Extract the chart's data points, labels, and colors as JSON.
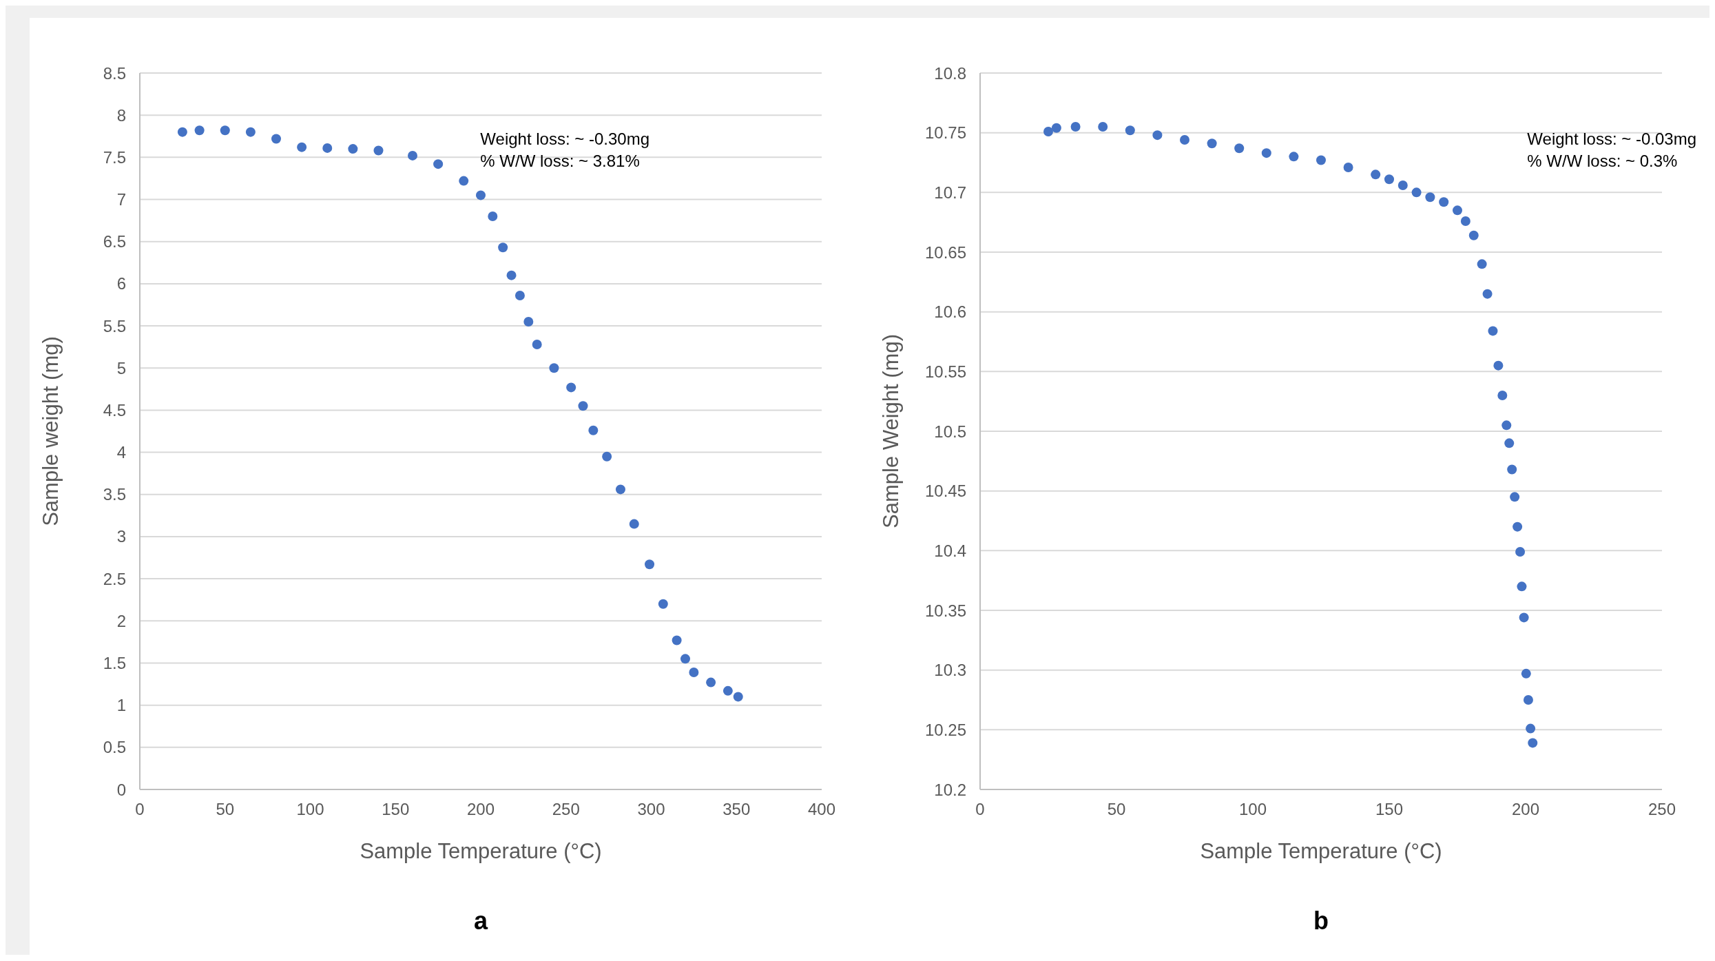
{
  "chart_data": [
    {
      "type": "scatter",
      "xlabel": "Sample Temperature  (°C)",
      "ylabel": "Sample weight (mg)",
      "annotations": [
        "Weight loss: ~ -0.30mg",
        "% W/W loss: ~ 3.81%",
        "a"
      ],
      "x": [
        25,
        35,
        50,
        65,
        80,
        95,
        110,
        125,
        140,
        160,
        175,
        190,
        200,
        207,
        213,
        218,
        223,
        228,
        233,
        243,
        253,
        260,
        266,
        274,
        282,
        290,
        299,
        307,
        315,
        320,
        325,
        335,
        345,
        351
      ],
      "series": [
        {
          "color": "#4472c4",
          "values": [
            7.8,
            7.82,
            7.82,
            7.8,
            7.72,
            7.62,
            7.61,
            7.6,
            7.58,
            7.52,
            7.42,
            7.22,
            7.05,
            6.8,
            6.43,
            6.1,
            5.86,
            5.55,
            5.28,
            5.0,
            4.77,
            4.55,
            4.26,
            3.95,
            3.56,
            3.15,
            2.67,
            2.2,
            1.77,
            1.55,
            1.39,
            1.27,
            1.17,
            1.1
          ]
        }
      ],
      "xlim": [
        0,
        400
      ],
      "xticks": [
        0,
        50,
        100,
        150,
        200,
        250,
        300,
        350,
        400
      ],
      "ylim": [
        0,
        8.5
      ],
      "yticks": [
        0,
        0.5,
        1,
        1.5,
        2,
        2.5,
        3,
        3.5,
        4,
        4.5,
        5,
        5.5,
        6,
        6.5,
        7,
        7.5,
        8,
        8.5
      ],
      "grid": "y",
      "marker": "circle"
    },
    {
      "type": "scatter",
      "xlabel": "Sample Temperature (°C)",
      "ylabel": "Sample Weight (mg)",
      "annotations": [
        "Weight loss: ~ -0.03mg",
        "% W/W loss: ~ 0.3%",
        "b"
      ],
      "x": [
        25,
        28,
        35,
        45,
        55,
        65,
        75,
        85,
        95,
        105,
        115,
        125,
        135,
        145,
        150,
        155,
        160,
        165,
        170,
        175,
        178,
        181,
        184,
        186,
        188,
        190,
        191.5,
        193,
        194,
        195,
        196,
        197,
        198,
        198.6,
        199.4,
        200.2,
        201,
        201.8,
        202.6
      ],
      "series": [
        {
          "color": "#4472c4",
          "values": [
            10.751,
            10.754,
            10.755,
            10.755,
            10.752,
            10.748,
            10.744,
            10.741,
            10.737,
            10.733,
            10.73,
            10.727,
            10.721,
            10.715,
            10.711,
            10.706,
            10.7,
            10.696,
            10.692,
            10.685,
            10.676,
            10.664,
            10.64,
            10.615,
            10.584,
            10.555,
            10.53,
            10.505,
            10.49,
            10.468,
            10.445,
            10.42,
            10.399,
            10.37,
            10.344,
            10.297,
            10.275,
            10.251,
            10.239
          ]
        }
      ],
      "xlim": [
        0,
        250
      ],
      "xticks": [
        0,
        50,
        100,
        150,
        200,
        250
      ],
      "ylim": [
        10.2,
        10.8
      ],
      "yticks": [
        10.2,
        10.25,
        10.3,
        10.35,
        10.4,
        10.45,
        10.5,
        10.55,
        10.6,
        10.65,
        10.7,
        10.75,
        10.8
      ],
      "grid": "y",
      "marker": "circle"
    }
  ]
}
